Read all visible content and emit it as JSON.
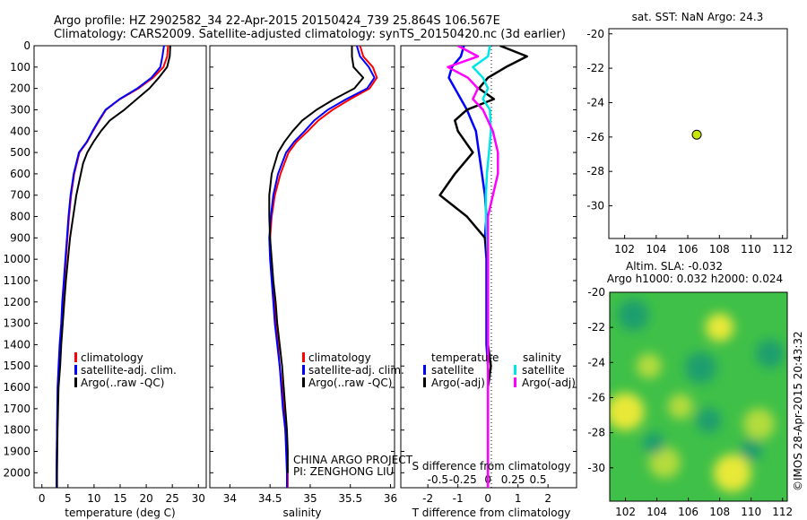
{
  "header": {
    "line1": "Argo profile: HZ 2902582_34 22-Apr-2015 20150424_739 25.864S 106.567E",
    "line2": "Climatology: CARS2009. Satellite-adjusted climatology: synTS_20150420.nc (3d earlier)"
  },
  "credit": {
    "line1": "CHINA ARGO PROJECT",
    "line2": "PI: ZENGHONG LIU"
  },
  "stamp": "©IMOS 28-Apr-2015 20:43:32",
  "colors": {
    "climatology": "#ff0000",
    "satellite": "#0000ff",
    "argo": "#000000",
    "sal_satellite": "#00e5e5",
    "sal_argo": "#ff00ff",
    "marker": "#c8e600"
  },
  "legend_profiles": [
    "climatology",
    "satellite-adj. clim.",
    "Argo(..raw -QC)"
  ],
  "depth_ticks": [
    "0",
    "100",
    "200",
    "300",
    "400",
    "500",
    "600",
    "700",
    "800",
    "900",
    "1000",
    "1100",
    "1200",
    "1300",
    "1400",
    "1500",
    "1600",
    "1700",
    "1800",
    "1900",
    "2000"
  ],
  "chart_data": [
    {
      "type": "line",
      "id": "temperature",
      "xlabel": "temperature (deg C)",
      "ylim": [
        2070,
        0
      ],
      "xlim": [
        -1.5,
        31.5
      ],
      "xticks": [
        "0",
        "5",
        "10",
        "15",
        "20",
        "25",
        "30"
      ],
      "series": [
        {
          "name": "climatology",
          "x": [
            24.2,
            24.0,
            23.3,
            21.3,
            18.5,
            15.0,
            12.3,
            11.0,
            9.8,
            8.7,
            7.2,
            6.2,
            5.6,
            5.2,
            4.9,
            4.6,
            4.3,
            4.0,
            3.8,
            3.5,
            3.3,
            3.1,
            2.9,
            2.8,
            2.8
          ],
          "y": [
            0,
            50,
            100,
            150,
            200,
            250,
            300,
            350,
            400,
            450,
            500,
            600,
            700,
            800,
            900,
            1000,
            1100,
            1200,
            1300,
            1400,
            1500,
            1600,
            1800,
            2000,
            2070
          ]
        },
        {
          "name": "satellite-adj. clim.",
          "x": [
            23.4,
            23.1,
            22.7,
            21.0,
            18.3,
            14.9,
            12.2,
            10.9,
            9.7,
            8.6,
            7.1,
            6.1,
            5.5,
            5.1,
            4.8,
            4.5,
            4.2,
            3.9,
            3.7,
            3.4,
            3.2,
            3.0,
            2.9,
            2.8,
            2.8
          ],
          "y": [
            0,
            50,
            100,
            150,
            200,
            250,
            300,
            350,
            400,
            450,
            500,
            600,
            700,
            800,
            900,
            1000,
            1100,
            1200,
            1300,
            1400,
            1500,
            1600,
            1800,
            2000,
            2070
          ]
        },
        {
          "name": "Argo(..raw -QC)",
          "x": [
            24.6,
            24.5,
            24.0,
            22.4,
            20.6,
            18.2,
            15.8,
            13.0,
            11.3,
            9.9,
            8.7,
            7.9,
            6.6,
            6.0,
            5.4,
            5.0,
            4.6,
            4.3,
            4.0,
            3.7,
            3.5,
            3.2,
            3.0,
            2.9,
            2.9
          ],
          "y": [
            0,
            50,
            100,
            150,
            200,
            250,
            300,
            350,
            400,
            450,
            500,
            550,
            700,
            800,
            900,
            1000,
            1100,
            1200,
            1300,
            1400,
            1500,
            1600,
            1800,
            2000,
            2070
          ]
        }
      ],
      "legend": "lower-left"
    },
    {
      "type": "line",
      "id": "salinity",
      "xlabel": "salinity",
      "ylim": [
        2070,
        0
      ],
      "xlim": [
        33.75,
        36.05
      ],
      "xticks": [
        "34",
        "34.5",
        "35",
        "35.5",
        "36"
      ],
      "series": [
        {
          "name": "climatology",
          "x": [
            35.62,
            35.66,
            35.78,
            35.83,
            35.74,
            35.5,
            35.28,
            35.1,
            34.97,
            34.83,
            34.73,
            34.63,
            34.56,
            34.52,
            34.5,
            34.51,
            34.53,
            34.55,
            34.57,
            34.6,
            34.62,
            34.65,
            34.67,
            34.69,
            34.71,
            34.72,
            34.72
          ],
          "y": [
            0,
            50,
            100,
            150,
            200,
            250,
            300,
            350,
            400,
            450,
            500,
            600,
            700,
            800,
            900,
            1000,
            1100,
            1200,
            1300,
            1400,
            1500,
            1600,
            1700,
            1800,
            1900,
            2000,
            2070
          ]
        },
        {
          "name": "satellite-adj. clim.",
          "x": [
            35.58,
            35.62,
            35.73,
            35.8,
            35.71,
            35.45,
            35.22,
            35.05,
            34.93,
            34.8,
            34.7,
            34.6,
            34.54,
            34.51,
            34.49,
            34.5,
            34.52,
            34.54,
            34.56,
            34.59,
            34.62,
            34.64,
            34.66,
            34.69,
            34.7,
            34.71,
            34.71
          ],
          "y": [
            0,
            50,
            100,
            150,
            200,
            250,
            300,
            350,
            400,
            450,
            500,
            600,
            700,
            800,
            900,
            1000,
            1100,
            1200,
            1300,
            1400,
            1500,
            1600,
            1700,
            1800,
            1900,
            2000,
            2070
          ]
        },
        {
          "name": "Argo(..raw -QC)",
          "x": [
            35.52,
            35.52,
            35.54,
            35.66,
            35.55,
            35.3,
            35.08,
            34.9,
            34.78,
            34.68,
            34.6,
            34.52,
            34.49,
            34.49,
            34.5,
            34.52,
            34.54,
            34.57,
            34.59,
            34.62,
            34.65,
            34.67,
            34.69,
            34.71,
            34.72,
            34.72
          ],
          "y": [
            0,
            50,
            100,
            150,
            200,
            250,
            300,
            350,
            400,
            450,
            500,
            600,
            700,
            800,
            900,
            1000,
            1100,
            1200,
            1300,
            1400,
            1500,
            1600,
            1700,
            1800,
            1900,
            2000
          ]
        }
      ],
      "legend": "lower-right"
    },
    {
      "type": "line",
      "id": "differences",
      "xlabel": "T difference from climatology",
      "xlabel_top": "S difference from climatology",
      "ylim": [
        2070,
        0
      ],
      "xlim": [
        -2.9,
        2.95
      ],
      "xticks": [
        "-2",
        "-1",
        "0",
        "1",
        "2"
      ],
      "xticks_salinity": [
        "-0.5",
        "-0.25",
        "0",
        "0.25",
        "0.5"
      ],
      "legend_header_temperature": "temperature",
      "legend_header_salinity": "salinity",
      "legend_satellite": "satellite",
      "legend_argo": "Argo(-adj)",
      "series": [
        {
          "name": "T satellite",
          "x": [
            -0.8,
            -0.9,
            -1.2,
            -1.3,
            -1.1,
            -0.9,
            -0.7,
            -0.55,
            -0.4,
            -0.3,
            -0.2,
            -0.1,
            -0.05,
            -0.1,
            -0.05,
            -0.05,
            -0.05,
            0.0,
            0.0,
            0.0,
            0.0,
            0.0
          ],
          "y": [
            0,
            50,
            100,
            150,
            200,
            250,
            300,
            350,
            400,
            500,
            600,
            700,
            800,
            900,
            1000,
            1200,
            1400,
            1500,
            1600,
            1800,
            2000,
            2070
          ]
        },
        {
          "name": "T Argo(-adj)",
          "x": [
            0.4,
            1.3,
            0.6,
            0.0,
            -0.3,
            0.2,
            -0.7,
            -1.1,
            -1.0,
            -0.5,
            -1.1,
            -1.6,
            -0.7,
            -0.1,
            0.0,
            0.0,
            0.0,
            0.1,
            0.0,
            0.0,
            0.0,
            0.0
          ],
          "y": [
            0,
            50,
            100,
            150,
            200,
            250,
            300,
            350,
            400,
            500,
            600,
            700,
            800,
            900,
            1000,
            1200,
            1400,
            1500,
            1600,
            1800,
            2000,
            2070
          ]
        },
        {
          "name": "S satellite",
          "x": [
            0.02,
            0.0,
            -0.15,
            -0.05,
            0.0,
            -0.05,
            0.02,
            0.03,
            0.01,
            -0.01,
            -0.02,
            -0.02,
            -0.01,
            0.0,
            0.0,
            0.0
          ],
          "y": [
            0,
            50,
            100,
            150,
            200,
            250,
            300,
            400,
            500,
            600,
            700,
            800,
            900,
            1000,
            1500,
            2070
          ]
        },
        {
          "name": "S Argo(-adj)",
          "x": [
            -0.3,
            -0.1,
            -0.4,
            -0.2,
            -0.1,
            -0.15,
            -0.05,
            0.05,
            0.1,
            0.1,
            0.05,
            0.0,
            0.0,
            0.0,
            0.0,
            0.0
          ],
          "y": [
            0,
            50,
            100,
            150,
            200,
            250,
            300,
            400,
            500,
            600,
            700,
            800,
            900,
            1000,
            1500,
            2070
          ]
        }
      ]
    },
    {
      "type": "scatter",
      "id": "sst-map",
      "title": "sat. SST: NaN Argo: 24.3",
      "xlim": [
        101,
        112.3
      ],
      "ylim": [
        -31.9,
        -19.7
      ],
      "xticks": [
        "102",
        "104",
        "106",
        "108",
        "110",
        "112"
      ],
      "yticks": [
        "-20",
        "-22",
        "-24",
        "-26",
        "-28",
        "-30"
      ],
      "points": [
        {
          "x": 106.567,
          "y": -25.864
        }
      ]
    },
    {
      "type": "heatmap",
      "id": "sla-map",
      "title_line1": "Altim. SLA: -0.032",
      "title_line2": "Argo h1000: 0.032 h2000: 0.024",
      "xlim": [
        101,
        112.3
      ],
      "ylim": [
        -31.9,
        -20
      ],
      "xticks": [
        "102",
        "104",
        "106",
        "108",
        "110",
        "112"
      ],
      "yticks": [
        "-20",
        "-22",
        "-24",
        "-26",
        "-28",
        "-30"
      ],
      "blobs": [
        {
          "x": 102.0,
          "y": -26.8,
          "r": 1.2,
          "level": "high"
        },
        {
          "x": 108.8,
          "y": -30.3,
          "r": 1.2,
          "level": "high"
        },
        {
          "x": 108.0,
          "y": -22.0,
          "r": 0.9,
          "level": "high"
        },
        {
          "x": 103.5,
          "y": -24.2,
          "r": 0.8,
          "level": "mid-high"
        },
        {
          "x": 110.5,
          "y": -27.5,
          "r": 1.0,
          "level": "mid-high"
        },
        {
          "x": 104.5,
          "y": -29.7,
          "r": 1.0,
          "level": "mid-high"
        },
        {
          "x": 105.5,
          "y": -26.5,
          "r": 0.8,
          "level": "mid-high"
        },
        {
          "x": 102.5,
          "y": -21.3,
          "r": 1.0,
          "level": "low"
        },
        {
          "x": 106.8,
          "y": -24.3,
          "r": 1.0,
          "level": "low"
        },
        {
          "x": 103.8,
          "y": -28.6,
          "r": 0.7,
          "level": "low"
        },
        {
          "x": 107.3,
          "y": -27.3,
          "r": 0.8,
          "level": "low"
        },
        {
          "x": 111.2,
          "y": -23.5,
          "r": 0.9,
          "level": "low"
        },
        {
          "x": 110.0,
          "y": -29.0,
          "r": 0.7,
          "level": "low"
        }
      ]
    }
  ]
}
